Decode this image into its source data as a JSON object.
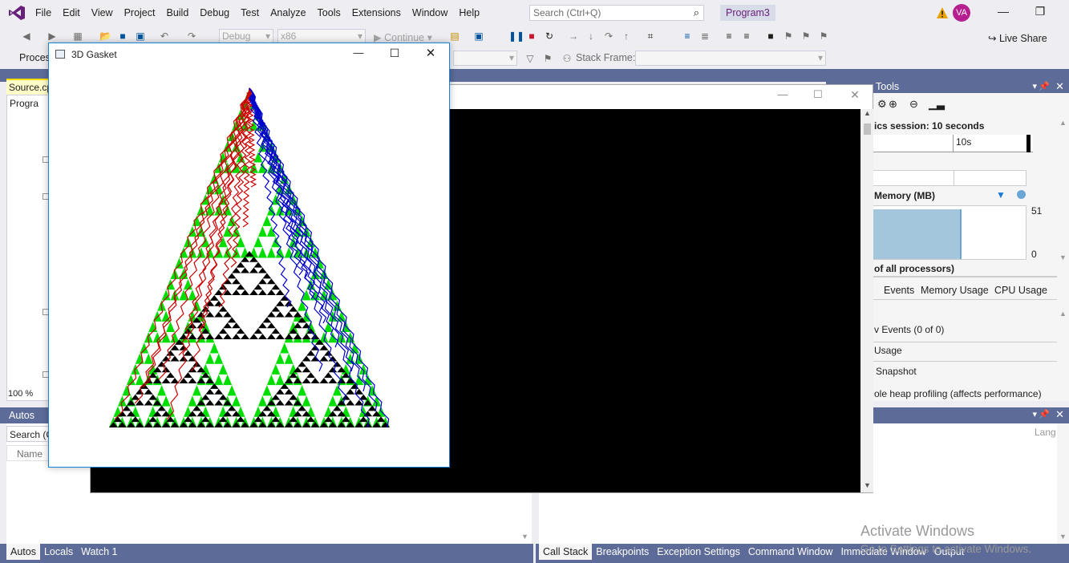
{
  "menu": [
    "File",
    "Edit",
    "View",
    "Project",
    "Build",
    "Debug",
    "Test",
    "Analyze",
    "Tools",
    "Extensions",
    "Window",
    "Help"
  ],
  "search": {
    "placeholder": "Search (Ctrl+Q)"
  },
  "project_name": "Program3",
  "user_initials": "VA",
  "toolbar": {
    "config": "Debug",
    "platform": "x86",
    "continue": "Continue",
    "live_share": "Live Share",
    "process_label": "Proces",
    "stack_frame": "Stack Frame:"
  },
  "editor": {
    "tab": "Source.cp",
    "project": "Progra",
    "zoom": "100 %"
  },
  "autos": {
    "title": "Autos",
    "search": "Search (C",
    "col_name": "Name"
  },
  "bottom_tabs_left": [
    "Autos",
    "Locals",
    "Watch 1"
  ],
  "bottom_tabs_right": [
    "Call Stack",
    "Breakpoints",
    "Exception Settings",
    "Command Window",
    "Immediate Window",
    "Output"
  ],
  "right_panel_lang": "Lang",
  "diag": {
    "title_part": "Tools",
    "session": "ics session: 10 seconds",
    "timeline_label": "10s",
    "memory_title": "Memory (MB)",
    "mem_max": "51",
    "mem_min": "0",
    "cpu_title": "of all processors)",
    "tabs": [
      "Events",
      "Memory Usage",
      "CPU Usage"
    ],
    "events": "v Events (0 of 0)",
    "usage": "Usage",
    "snapshot": "Snapshot",
    "heap": "ole heap profiling (affects performance)"
  },
  "gasket_window": {
    "title": "3D Gasket"
  },
  "watermark": {
    "line1": "Activate Windows",
    "line2": "Go to Settings to activate Windows."
  },
  "colors": {
    "accent": "#68217a",
    "blueband": "#5d6b99",
    "green": "#00dd00",
    "red": "#cc0000",
    "blue": "#0000cc"
  }
}
